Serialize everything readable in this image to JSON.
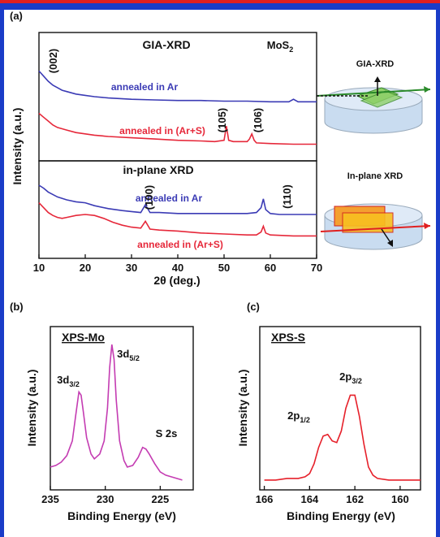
{
  "schematic_labels": [
    "GIA-XRD",
    "In-plane XRD"
  ],
  "chart_data": [
    {
      "type": "line",
      "label": "(a)",
      "title": "GIA-XRD",
      "ylabel": "Intensity (a.u.)",
      "xlim": [
        10,
        70
      ],
      "ylim": [
        0,
        100
      ],
      "annotations": [
        "(002)",
        {
          "text": "MoS",
          "sub": "2"
        },
        "(105)",
        "(106)"
      ],
      "series": [
        {
          "name": "annealed in Ar",
          "color": "#3b3bb5",
          "x": [
            10,
            11,
            12,
            13,
            14,
            15,
            16,
            18,
            20,
            22,
            25,
            30,
            35,
            40,
            45,
            50,
            55,
            60,
            64,
            65,
            66,
            70
          ],
          "values": [
            70,
            66,
            62,
            59,
            57,
            55,
            54,
            52,
            51,
            50,
            49,
            48,
            47.5,
            47,
            47,
            46.5,
            46.5,
            46,
            46,
            48,
            46,
            46
          ]
        },
        {
          "name": "annealed in (Ar+S)",
          "color": "#e6283a",
          "x": [
            10,
            11,
            12,
            13,
            14,
            15,
            16,
            18,
            20,
            22,
            25,
            30,
            35,
            40,
            45,
            48,
            50,
            50.5,
            51,
            52,
            55,
            55.5,
            56,
            56.5,
            57,
            60,
            65,
            70
          ],
          "values": [
            37,
            34,
            31,
            28,
            26,
            25,
            24,
            22,
            21,
            20,
            19,
            18,
            17,
            16,
            15.5,
            15,
            16,
            27,
            16,
            15,
            15,
            17,
            21,
            16,
            14,
            13.5,
            13,
            13
          ]
        }
      ]
    },
    {
      "type": "line",
      "title": "in-plane XRD",
      "xlabel": "2θ (deg.)",
      "xlim": [
        10,
        70
      ],
      "ylim": [
        0,
        100
      ],
      "xticks": [
        10,
        20,
        30,
        40,
        50,
        60,
        70
      ],
      "annotations": [
        "(100)",
        "(110)"
      ],
      "series": [
        {
          "name": "annealed in Ar",
          "color": "#3b3bb5",
          "x": [
            10,
            11,
            12,
            14,
            16,
            18,
            20,
            22,
            25,
            28,
            30,
            32,
            33,
            34,
            36,
            40,
            45,
            50,
            55,
            57,
            58,
            58.5,
            59,
            60,
            62,
            65,
            70
          ],
          "values": [
            75,
            72,
            68,
            63,
            60,
            58,
            57,
            54,
            51,
            49,
            48,
            47,
            55,
            47,
            47,
            46,
            46,
            46,
            46,
            47,
            52,
            61,
            50,
            46,
            45,
            45,
            45
          ]
        },
        {
          "name": "annealed in (Ar+S)",
          "color": "#e6283a",
          "x": [
            10,
            11,
            12,
            13,
            14,
            15,
            16,
            18,
            20,
            22,
            24,
            26,
            28,
            30,
            32,
            33,
            34,
            36,
            40,
            45,
            50,
            55,
            57,
            58,
            58.5,
            59,
            60,
            65,
            70
          ],
          "values": [
            57,
            52,
            47,
            44,
            42,
            41,
            42,
            44,
            45,
            44,
            41,
            37,
            34,
            32,
            31,
            38,
            30,
            29,
            28,
            26,
            25,
            24,
            24,
            27,
            33,
            26,
            24,
            23,
            23
          ]
        }
      ]
    },
    {
      "type": "line",
      "label": "(b)",
      "title": "XPS-Mo",
      "xlabel": "Binding Energy (eV)",
      "ylabel": "Intensity (a.u.)",
      "xlim": [
        235,
        222
      ],
      "ylim": [
        0,
        100
      ],
      "xticks": [
        235,
        230,
        225
      ],
      "annotations": [
        {
          "text": "3d",
          "sub": "3/2"
        },
        {
          "text": "3d",
          "sub": "5/2"
        },
        "S 2s"
      ],
      "series": [
        {
          "color": "#c43cb2",
          "x": [
            235,
            234.5,
            234,
            233.5,
            233,
            232.7,
            232.4,
            232.2,
            232,
            231.7,
            231.3,
            231,
            230.5,
            230.1,
            229.8,
            229.6,
            229.4,
            229.2,
            229,
            228.7,
            228.3,
            228,
            227.5,
            227,
            226.6,
            226.3,
            226,
            225.5,
            225,
            224.5,
            224,
            223.5,
            223
          ],
          "values": [
            14,
            15,
            17,
            21,
            30,
            45,
            60,
            58,
            48,
            32,
            22,
            19,
            22,
            30,
            50,
            75,
            89,
            80,
            55,
            30,
            18,
            14,
            15,
            20,
            26,
            25,
            22,
            16,
            11,
            9,
            8,
            7,
            6
          ]
        }
      ]
    },
    {
      "type": "line",
      "label": "(c)",
      "title": "XPS-S",
      "xlabel": "Binding Energy (eV)",
      "ylabel": "Intensity (a.u.)",
      "xlim": [
        166.2,
        159.1
      ],
      "ylim": [
        0,
        100
      ],
      "xticks": [
        166,
        164,
        162,
        160
      ],
      "annotations": [
        {
          "text": "2p",
          "sub": "1/2"
        },
        {
          "text": "2p",
          "sub": "3/2"
        }
      ],
      "series": [
        {
          "color": "#e6202a",
          "x": [
            166,
            165.5,
            165,
            164.5,
            164.2,
            164,
            163.8,
            163.6,
            163.4,
            163.2,
            163,
            162.8,
            162.6,
            162.4,
            162.2,
            162,
            161.8,
            161.6,
            161.4,
            161.2,
            161,
            160.5,
            160,
            159.5,
            159.1
          ],
          "values": [
            6,
            6,
            7,
            7,
            8,
            10,
            16,
            26,
            33,
            34,
            30,
            29,
            36,
            50,
            58,
            58,
            45,
            28,
            14,
            9,
            7,
            6,
            6,
            6,
            6
          ]
        }
      ]
    }
  ]
}
